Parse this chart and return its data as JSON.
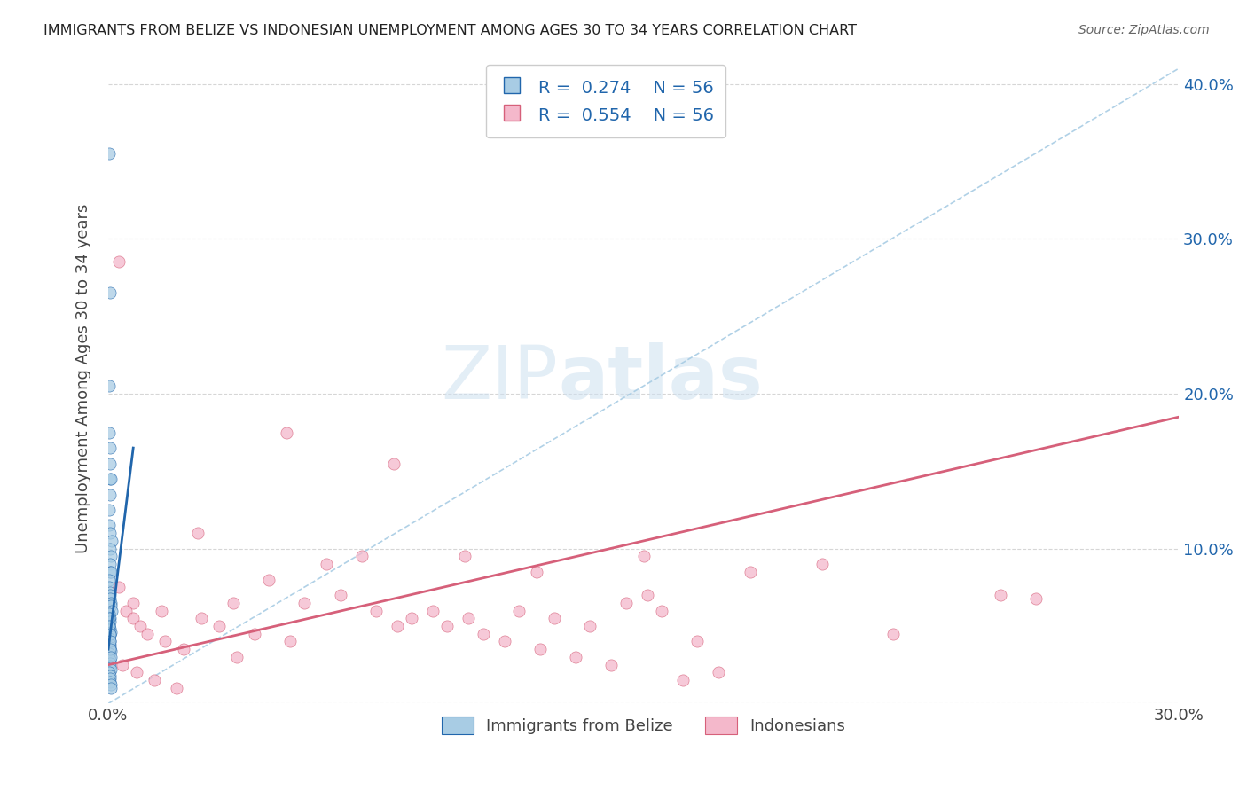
{
  "title": "IMMIGRANTS FROM BELIZE VS INDONESIAN UNEMPLOYMENT AMONG AGES 30 TO 34 YEARS CORRELATION CHART",
  "source": "Source: ZipAtlas.com",
  "ylabel": "Unemployment Among Ages 30 to 34 years",
  "xlim": [
    0.0,
    0.3
  ],
  "ylim": [
    0.0,
    0.42
  ],
  "x_ticks": [
    0.0,
    0.05,
    0.1,
    0.15,
    0.2,
    0.25,
    0.3
  ],
  "y_ticks_right": [
    0.0,
    0.1,
    0.2,
    0.3,
    0.4
  ],
  "y_tick_labels_right": [
    "",
    "10.0%",
    "20.0%",
    "30.0%",
    "40.0%"
  ],
  "color_blue": "#a8cce4",
  "color_pink": "#f4b8cb",
  "color_blue_dark": "#2166ac",
  "color_pink_dark": "#d6607a",
  "color_blue_trend_dashed": "#a8cce4",
  "watermark_zip": "ZIP",
  "watermark_atlas": "atlas",
  "belize_scatter_x": [
    0.0003,
    0.0004,
    0.0002,
    0.0003,
    0.0005,
    0.0006,
    0.0004,
    0.0007,
    0.0005,
    0.0003,
    0.0002,
    0.0004,
    0.0009,
    0.0006,
    0.0008,
    0.0005,
    0.0004,
    0.0007,
    0.0003,
    0.0002,
    0.0005,
    0.0004,
    0.0006,
    0.0007,
    0.0008,
    0.0009,
    0.0003,
    0.0004,
    0.0005,
    0.0002,
    0.0006,
    0.0007,
    0.0004,
    0.0003,
    0.0005,
    0.0006,
    0.0004,
    0.0007,
    0.0003,
    0.0002,
    0.0004,
    0.0005,
    0.0006,
    0.0007,
    0.0003,
    0.0004,
    0.0005,
    0.0006,
    0.0007,
    0.0008,
    0.0002,
    0.0003,
    0.0004,
    0.0005,
    0.0006,
    0.0007
  ],
  "belize_scatter_y": [
    0.355,
    0.265,
    0.205,
    0.175,
    0.165,
    0.155,
    0.145,
    0.145,
    0.135,
    0.125,
    0.115,
    0.11,
    0.105,
    0.1,
    0.095,
    0.09,
    0.085,
    0.085,
    0.08,
    0.075,
    0.072,
    0.07,
    0.068,
    0.065,
    0.063,
    0.06,
    0.058,
    0.055,
    0.053,
    0.05,
    0.048,
    0.046,
    0.044,
    0.042,
    0.04,
    0.038,
    0.036,
    0.034,
    0.032,
    0.03,
    0.028,
    0.026,
    0.024,
    0.022,
    0.02,
    0.018,
    0.016,
    0.014,
    0.012,
    0.01,
    0.055,
    0.05,
    0.045,
    0.04,
    0.035,
    0.03
  ],
  "indonesian_scatter_x": [
    0.003,
    0.05,
    0.08,
    0.1,
    0.12,
    0.15,
    0.18,
    0.2,
    0.22,
    0.25,
    0.007,
    0.015,
    0.025,
    0.035,
    0.045,
    0.055,
    0.065,
    0.075,
    0.085,
    0.095,
    0.105,
    0.115,
    0.125,
    0.135,
    0.145,
    0.155,
    0.165,
    0.003,
    0.005,
    0.007,
    0.009,
    0.011,
    0.016,
    0.021,
    0.026,
    0.031,
    0.036,
    0.041,
    0.051,
    0.061,
    0.071,
    0.081,
    0.091,
    0.101,
    0.111,
    0.121,
    0.131,
    0.141,
    0.151,
    0.161,
    0.171,
    0.26,
    0.004,
    0.008,
    0.013,
    0.019
  ],
  "indonesian_scatter_y": [
    0.285,
    0.175,
    0.155,
    0.095,
    0.085,
    0.095,
    0.085,
    0.09,
    0.045,
    0.07,
    0.065,
    0.06,
    0.11,
    0.065,
    0.08,
    0.065,
    0.07,
    0.06,
    0.055,
    0.05,
    0.045,
    0.06,
    0.055,
    0.05,
    0.065,
    0.06,
    0.04,
    0.075,
    0.06,
    0.055,
    0.05,
    0.045,
    0.04,
    0.035,
    0.055,
    0.05,
    0.03,
    0.045,
    0.04,
    0.09,
    0.095,
    0.05,
    0.06,
    0.055,
    0.04,
    0.035,
    0.03,
    0.025,
    0.07,
    0.015,
    0.02,
    0.068,
    0.025,
    0.02,
    0.015,
    0.01
  ],
  "belize_solid_trend_x": [
    0.0,
    0.007
  ],
  "belize_solid_trend_y": [
    0.035,
    0.165
  ],
  "belize_dashed_trend_x": [
    0.0,
    0.3
  ],
  "belize_dashed_trend_y": [
    0.0,
    0.41
  ],
  "indonesian_trend_x": [
    0.0,
    0.3
  ],
  "indonesian_trend_y": [
    0.025,
    0.185
  ]
}
